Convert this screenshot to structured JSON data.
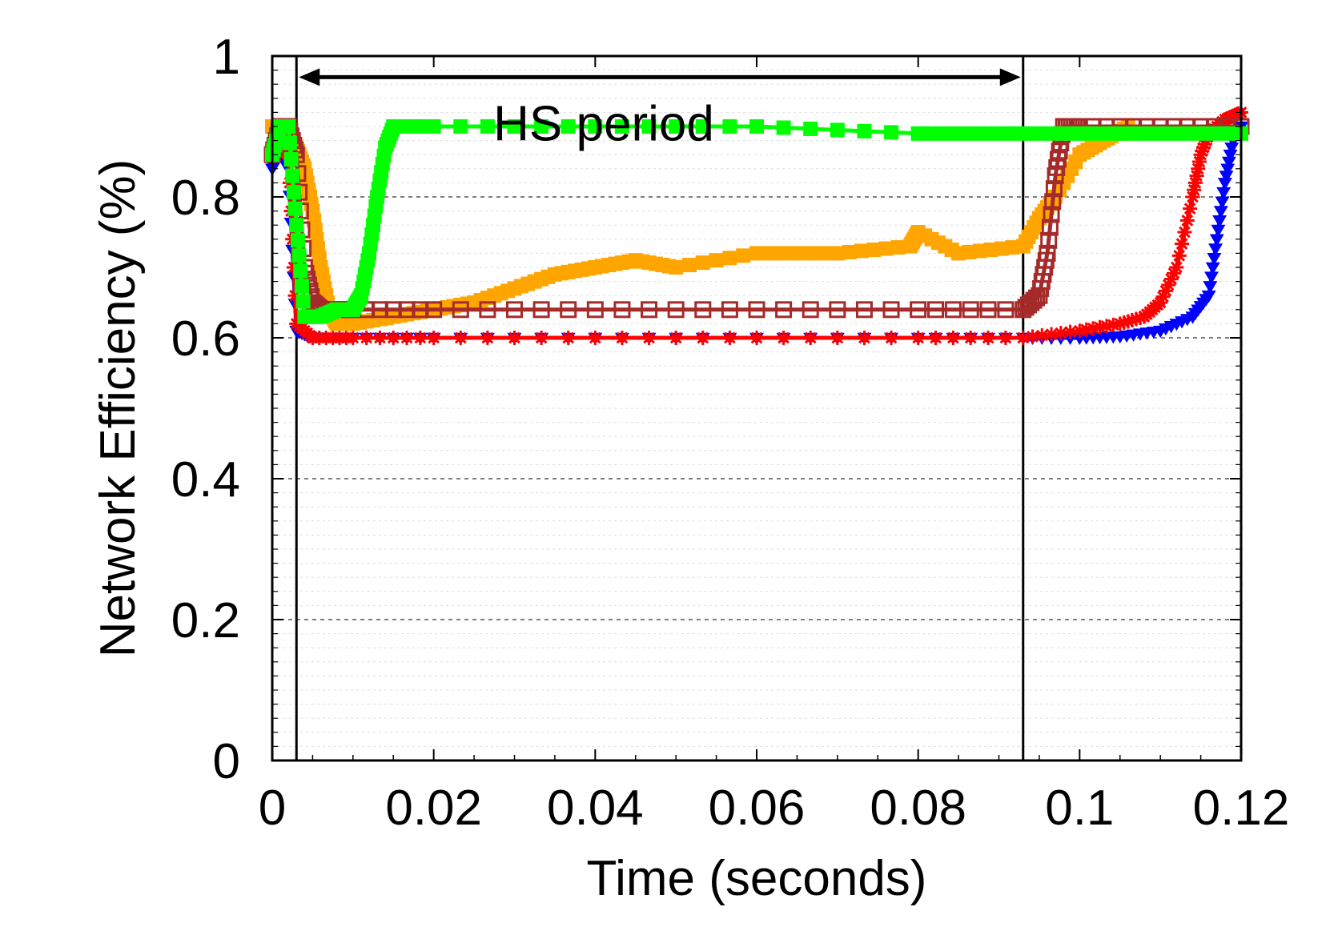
{
  "chart_data": {
    "type": "line",
    "title": "",
    "xlabel": "Time (seconds)",
    "ylabel": "Network Efficiency (%)",
    "xlim": [
      0,
      0.12
    ],
    "ylim": [
      0,
      1
    ],
    "x_ticks": [
      {
        "value": 0,
        "label": "0"
      },
      {
        "value": 0.02,
        "label": "0.02"
      },
      {
        "value": 0.04,
        "label": "0.04"
      },
      {
        "value": 0.06,
        "label": "0.06"
      },
      {
        "value": 0.08,
        "label": "0.08"
      },
      {
        "value": 0.1,
        "label": "0.1"
      },
      {
        "value": 0.12,
        "label": "0.12"
      }
    ],
    "y_ticks": [
      {
        "value": 0,
        "label": "0"
      },
      {
        "value": 0.2,
        "label": "0.2"
      },
      {
        "value": 0.4,
        "label": "0.4"
      },
      {
        "value": 0.6,
        "label": "0.6"
      },
      {
        "value": 0.8,
        "label": "0.8"
      },
      {
        "value": 1,
        "label": "1"
      }
    ],
    "grid": true,
    "legend": "none",
    "annotations": {
      "period_label": "HS period",
      "period_start": 0.003,
      "period_end": 0.093,
      "arrow_y": 0.97
    },
    "series": [
      {
        "color": "#0000ff",
        "marker": "triangle-down",
        "x": [
          0,
          0.001,
          0.002,
          0.003,
          0.005,
          0.01,
          0.02,
          0.04,
          0.06,
          0.08,
          0.093,
          0.1,
          0.105,
          0.11,
          0.114,
          0.116,
          0.117,
          0.118,
          0.119,
          0.12
        ],
        "y": [
          0.84,
          0.86,
          0.84,
          0.61,
          0.6,
          0.6,
          0.6,
          0.6,
          0.6,
          0.6,
          0.6,
          0.6,
          0.602,
          0.61,
          0.63,
          0.66,
          0.74,
          0.82,
          0.88,
          0.9
        ]
      },
      {
        "color": "#ff0000",
        "marker": "star",
        "x": [
          0,
          0.001,
          0.002,
          0.003,
          0.005,
          0.01,
          0.02,
          0.04,
          0.06,
          0.08,
          0.093,
          0.1,
          0.105,
          0.108,
          0.11,
          0.112,
          0.114,
          0.115,
          0.116,
          0.118,
          0.12
        ],
        "y": [
          0.86,
          0.87,
          0.86,
          0.62,
          0.6,
          0.6,
          0.6,
          0.6,
          0.6,
          0.6,
          0.6,
          0.61,
          0.62,
          0.63,
          0.65,
          0.7,
          0.8,
          0.86,
          0.89,
          0.91,
          0.92
        ]
      },
      {
        "color": "#ffa500",
        "marker": "square",
        "x": [
          0,
          0.001,
          0.002,
          0.003,
          0.004,
          0.005,
          0.006,
          0.007,
          0.008,
          0.01,
          0.015,
          0.02,
          0.025,
          0.03,
          0.035,
          0.04,
          0.045,
          0.05,
          0.06,
          0.07,
          0.079,
          0.08,
          0.085,
          0.093,
          0.095,
          0.097,
          0.1,
          0.103,
          0.106
        ],
        "y": [
          0.9,
          0.9,
          0.89,
          0.87,
          0.84,
          0.78,
          0.7,
          0.64,
          0.62,
          0.62,
          0.63,
          0.64,
          0.65,
          0.67,
          0.69,
          0.7,
          0.71,
          0.7,
          0.72,
          0.72,
          0.73,
          0.75,
          0.72,
          0.73,
          0.77,
          0.8,
          0.86,
          0.88,
          0.9
        ]
      },
      {
        "color": "#a52a2a",
        "marker": "square-open",
        "x": [
          0,
          0.001,
          0.002,
          0.003,
          0.004,
          0.005,
          0.006,
          0.008,
          0.01,
          0.02,
          0.04,
          0.06,
          0.08,
          0.093,
          0.095,
          0.096,
          0.097,
          0.098,
          0.1,
          0.11,
          0.12
        ],
        "y": [
          0.86,
          0.9,
          0.9,
          0.86,
          0.7,
          0.65,
          0.64,
          0.64,
          0.64,
          0.64,
          0.64,
          0.64,
          0.64,
          0.64,
          0.66,
          0.72,
          0.83,
          0.9,
          0.9,
          0.9,
          0.9
        ]
      },
      {
        "color": "#00ff00",
        "marker": "square",
        "x": [
          0,
          0.001,
          0.002,
          0.003,
          0.004,
          0.006,
          0.008,
          0.01,
          0.011,
          0.012,
          0.013,
          0.014,
          0.015,
          0.016,
          0.02,
          0.04,
          0.06,
          0.08,
          0.09,
          0.1,
          0.11,
          0.12
        ],
        "y": [
          0.86,
          0.9,
          0.9,
          0.76,
          0.63,
          0.63,
          0.64,
          0.64,
          0.66,
          0.72,
          0.8,
          0.87,
          0.9,
          0.9,
          0.9,
          0.9,
          0.9,
          0.89,
          0.89,
          0.89,
          0.89,
          0.89
        ]
      }
    ]
  }
}
